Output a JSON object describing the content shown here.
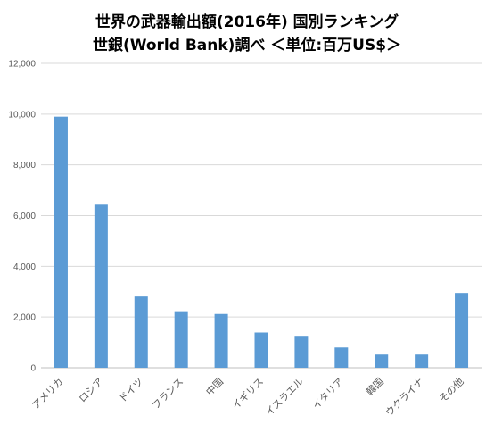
{
  "chart_data": {
    "type": "bar",
    "title": "世界の武器輸出額(2016年)  国別ランキング",
    "subtitle": "世銀(World Bank)調べ  ＜単位:百万US$＞",
    "xlabel": "",
    "ylabel": "",
    "ylim": [
      0,
      12000
    ],
    "yticks": [
      0,
      2000,
      4000,
      6000,
      8000,
      10000,
      12000
    ],
    "ytick_labels": [
      "0",
      "2,000",
      "4,000",
      "6,000",
      "8,000",
      "10,000",
      "12,000"
    ],
    "categories": [
      "アメリカ",
      "ロシア",
      "ドイツ",
      "フランス",
      "中国",
      "イギリス",
      "イスラエル",
      "イタリア",
      "韓国",
      "ウクライナ",
      "その他"
    ],
    "values": [
      9900,
      6430,
      2810,
      2230,
      2120,
      1390,
      1260,
      800,
      520,
      520,
      2950
    ],
    "bar_color": "#5B9BD5",
    "grid": true
  }
}
